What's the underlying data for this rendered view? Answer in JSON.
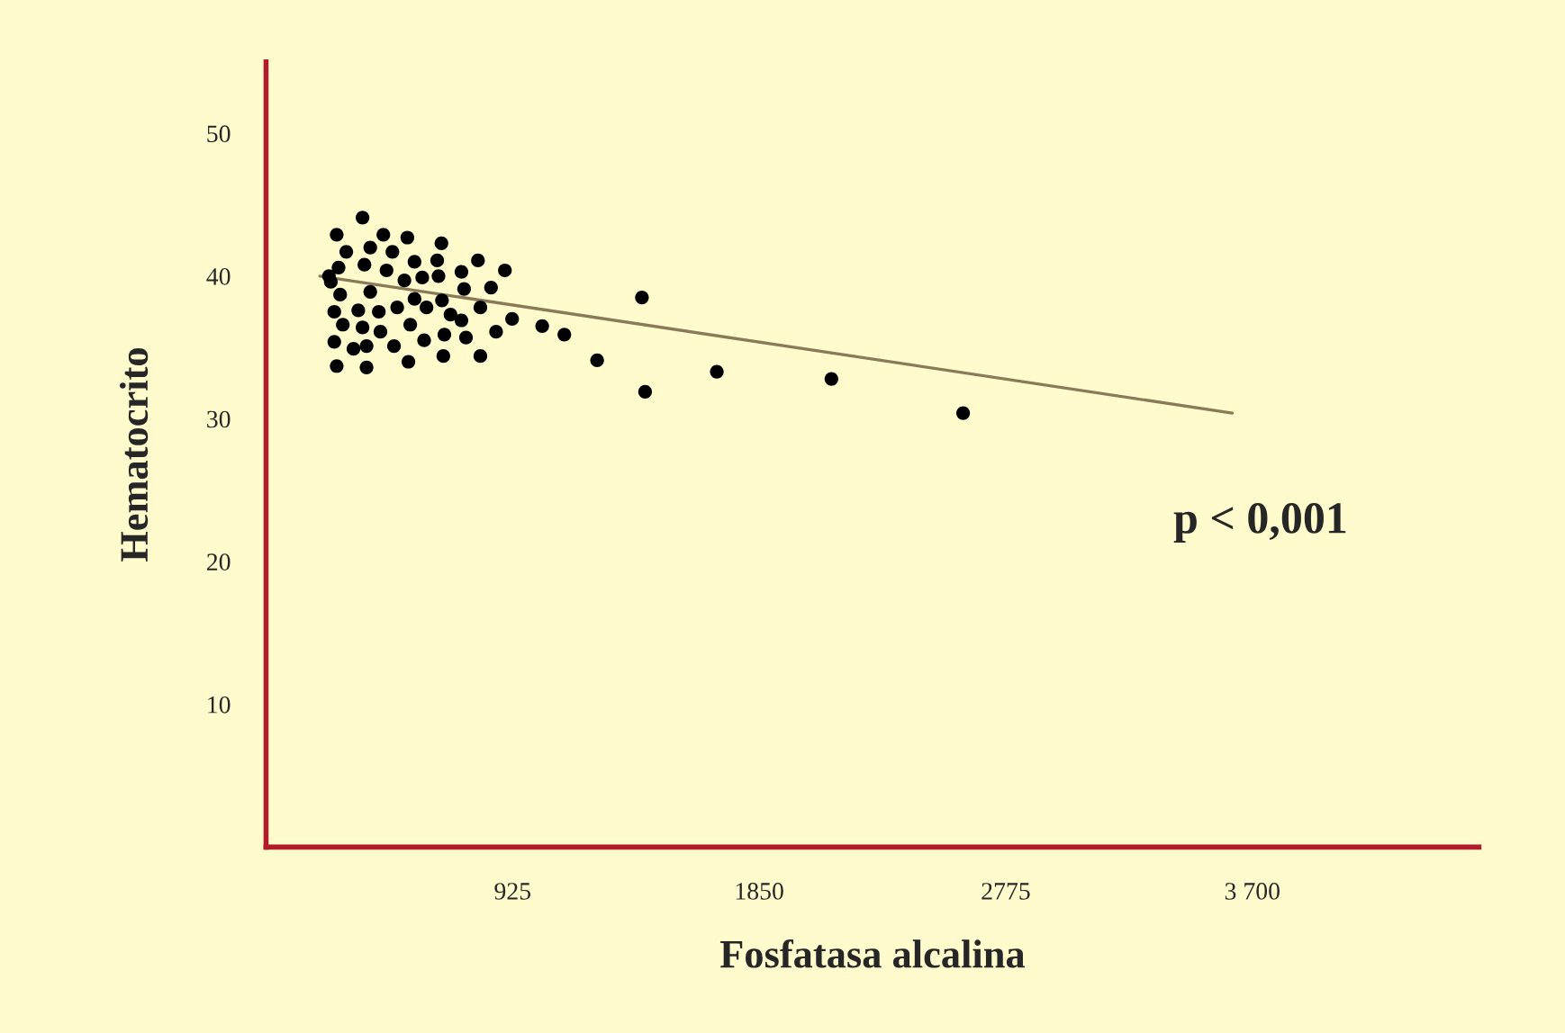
{
  "chart_data": {
    "type": "scatter",
    "xlabel": "Fosfatasa alcalina",
    "ylabel": "Hematocrito",
    "xlim": [
      0,
      4550
    ],
    "ylim": [
      0,
      55
    ],
    "xticks": [
      925,
      1850,
      2775,
      {
        "value": 3700,
        "label": "3 700"
      }
    ],
    "yticks": [
      10,
      20,
      30,
      40,
      50
    ],
    "grid": false,
    "marker": "circle",
    "annotations": [
      "p < 0,001"
    ],
    "series": [
      {
        "color": "#000000",
        "x": [
          362,
          265,
          440,
          530,
          301,
          391,
          474,
          658,
          272,
          369,
          452,
          557,
          642,
          795,
          733,
          896,
          243,
          519,
          586,
          647,
          844,
          743,
          278,
          391,
          557,
          660,
          602,
          804,
          256,
          346,
          423,
          492,
          692,
          541,
          733,
          923,
          1036,
          1119,
          288,
          362,
          429,
          669,
          750,
          863,
          256,
          328,
          377,
          480,
          593,
          665,
          804,
          265,
          377,
          534,
          236,
          1410,
          1242,
          1422,
          1691,
          2121,
          2615
        ],
        "values": [
          44.1,
          42.9,
          42.9,
          42.7,
          41.7,
          42.0,
          41.7,
          42.3,
          40.6,
          40.8,
          40.4,
          41.0,
          41.1,
          41.1,
          40.3,
          40.4,
          39.6,
          39.7,
          39.9,
          40.0,
          39.2,
          39.1,
          38.7,
          38.9,
          38.4,
          38.3,
          37.8,
          37.8,
          37.5,
          37.6,
          37.5,
          37.8,
          37.3,
          36.6,
          36.9,
          37.0,
          36.5,
          35.9,
          36.6,
          36.4,
          36.1,
          35.9,
          35.7,
          36.1,
          35.4,
          34.9,
          35.1,
          35.1,
          35.5,
          34.4,
          34.4,
          33.7,
          33.6,
          34.0,
          40.0,
          38.5,
          34.1,
          31.9,
          33.3,
          32.8,
          30.4
        ]
      },
      {
        "type": "line",
        "color": "#8a7a5a",
        "marker": "none",
        "x": [
          202,
          3625
        ],
        "values": [
          40.0,
          30.4
        ]
      }
    ]
  }
}
